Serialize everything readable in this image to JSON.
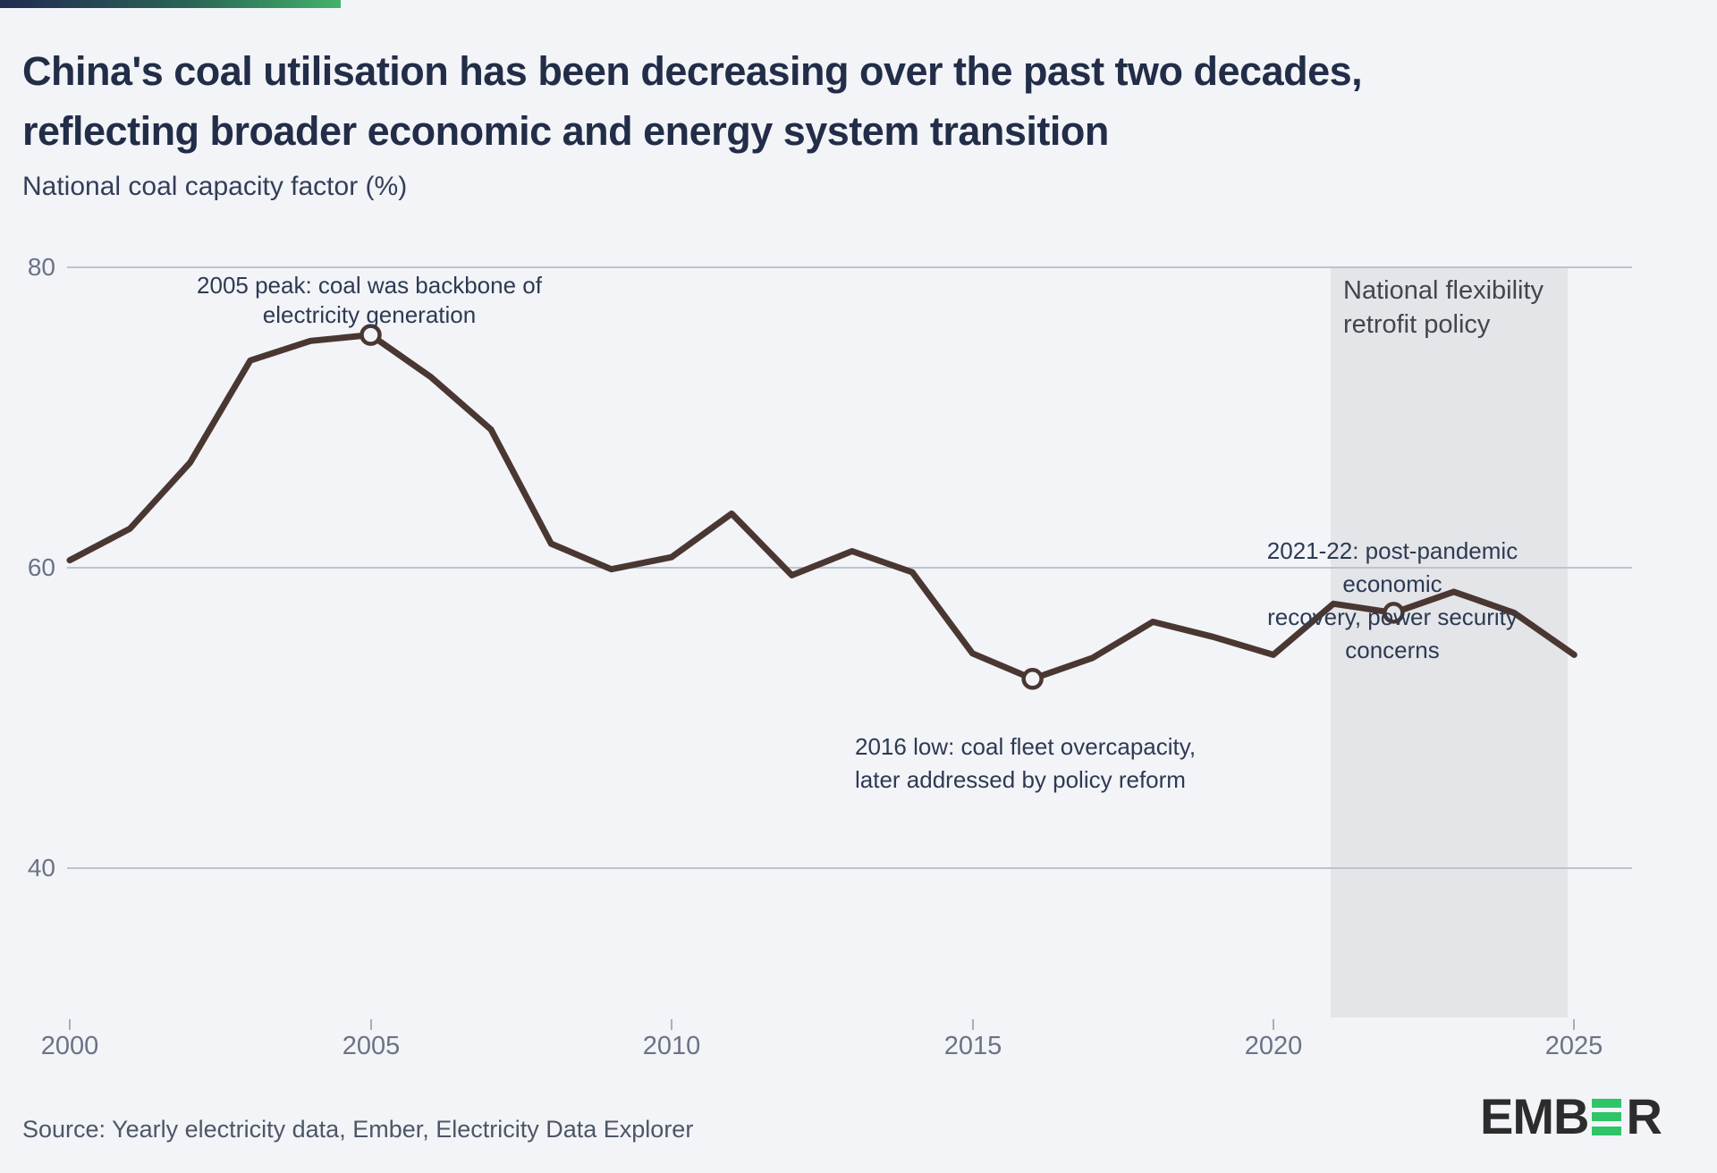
{
  "header": {
    "title_line1": "China's coal utilisation has been decreasing over the past two decades,",
    "title_line2": "reflecting broader economic and energy system transition",
    "subtitle": "National coal capacity factor (%)"
  },
  "chart_data": {
    "type": "line",
    "title": "China's coal utilisation has been decreasing over the past two decades, reflecting broader economic and energy system transition",
    "ylabel": "National coal capacity factor (%)",
    "xlabel": "",
    "grid": true,
    "ylim": [
      30,
      82
    ],
    "xlim": [
      2000,
      2025
    ],
    "yticks": [
      80,
      60,
      40
    ],
    "xticks": [
      2000,
      2005,
      2010,
      2015,
      2020,
      2025
    ],
    "x": [
      2000,
      2001,
      2002,
      2003,
      2004,
      2005,
      2006,
      2007,
      2008,
      2009,
      2010,
      2011,
      2012,
      2013,
      2014,
      2015,
      2016,
      2017,
      2018,
      2019,
      2020,
      2021,
      2022,
      2023,
      2024,
      2025
    ],
    "values": [
      60.5,
      62.6,
      67.0,
      73.8,
      75.1,
      75.5,
      72.7,
      69.2,
      61.6,
      59.9,
      60.7,
      63.6,
      59.5,
      61.1,
      59.7,
      54.3,
      52.6,
      54.0,
      56.4,
      55.4,
      54.2,
      57.6,
      57.0,
      58.4,
      57.0,
      54.2
    ],
    "series_name": "National coal capacity factor (%)",
    "markers": [
      2005,
      2016,
      2022
    ],
    "highlight_band": {
      "x_start": 2021,
      "x_end": 2024.9,
      "label_line1": "National flexibility",
      "label_line2": "retrofit policy"
    },
    "annotations": {
      "peak": {
        "line1": "2005 peak: coal was backbone of",
        "line2": "electricity generation"
      },
      "low": {
        "line1": "2016 low: coal fleet overcapacity,",
        "line2": "later addressed by policy reform"
      },
      "recovery": {
        "line1": "2021-22: post-pandemic economic",
        "line2": "recovery, power security concerns"
      }
    }
  },
  "footer": {
    "source": "Source: Yearly electricity data, Ember, Electricity Data Explorer",
    "logo_prefix": "EMB",
    "logo_suffix": "R"
  },
  "colors": {
    "background": "#f2f4f8",
    "band": "#e3e5e9",
    "gridline": "#bdc3cc",
    "line": "#4a3732",
    "title": "#222d48",
    "axis_text": "#6a7385",
    "annotation": "#2e3a52",
    "source_text": "#4d5666",
    "logo_green": "#2fc468",
    "gradient_bar": [
      "#222b52",
      "#2a6355",
      "#42b26b"
    ]
  }
}
